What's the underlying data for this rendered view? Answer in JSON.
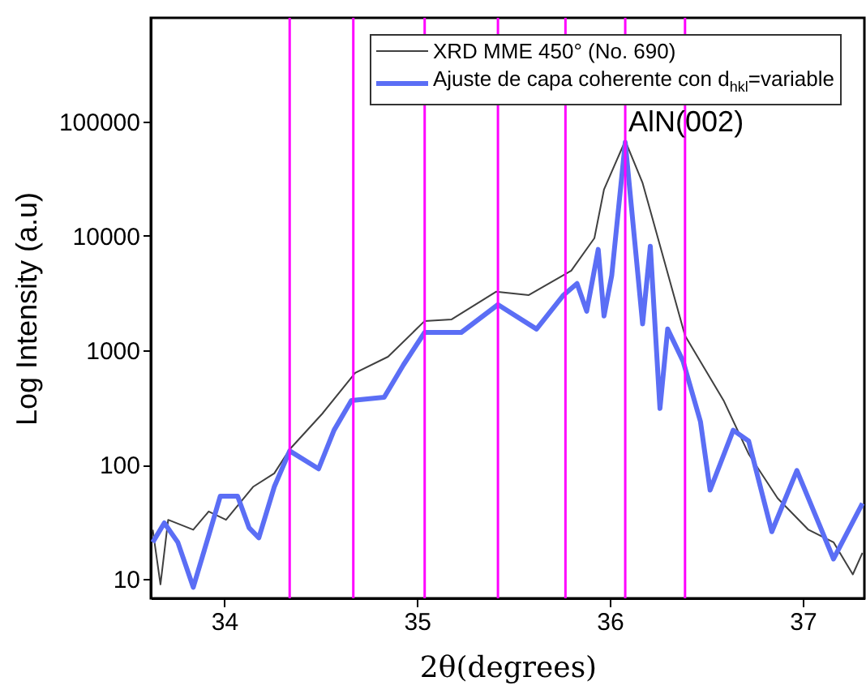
{
  "chart_data": {
    "type": "line",
    "xlabel": "2θ(degrees)",
    "ylabel": "Log Intensity (a.u)",
    "log": true,
    "grid": false,
    "legend": "top right",
    "line_style": "solid",
    "marker": "none",
    "xlim": [
      33.62,
      37.32
    ],
    "xticks": [
      34,
      35,
      36,
      37
    ],
    "ylim": [
      6.8,
      800000
    ],
    "yticks": [
      10,
      100,
      1000,
      10000,
      100000
    ],
    "annotations": [
      {
        "text": "AlN(002)",
        "x": 36.08,
        "y": 100000
      }
    ],
    "ref_lines": [
      {
        "axis": "x",
        "value": 34.34,
        "color": "#ff00ff"
      },
      {
        "axis": "x",
        "value": 34.67,
        "color": "#ff00ff"
      },
      {
        "axis": "x",
        "value": 35.04,
        "color": "#ff00ff"
      },
      {
        "axis": "x",
        "value": 35.42,
        "color": "#ff00ff"
      },
      {
        "axis": "x",
        "value": 35.77,
        "color": "#ff00ff"
      },
      {
        "axis": "x",
        "value": 36.08,
        "color": "#ff00ff"
      },
      {
        "axis": "x",
        "value": 36.39,
        "color": "#ff00ff"
      }
    ],
    "series": [
      {
        "name": "XRD MME 450° (No. 690)",
        "color": "#404040",
        "x": [
          33.63,
          33.67,
          33.71,
          33.84,
          33.92,
          34.01,
          34.15,
          34.26,
          34.34,
          34.51,
          34.68,
          34.85,
          35.04,
          35.18,
          35.41,
          35.58,
          35.8,
          35.92,
          35.97,
          36.08,
          36.17,
          36.28,
          36.39,
          36.59,
          36.72,
          36.87,
          37.03,
          37.16,
          37.26,
          37.31
        ],
        "values": [
          27,
          9,
          33,
          27,
          39,
          33,
          64,
          84,
          136,
          280,
          634,
          877,
          1800,
          1860,
          3240,
          3030,
          4950,
          9520,
          25400,
          67600,
          28900,
          6240,
          1340,
          364,
          124,
          51,
          27,
          21,
          11,
          17
        ]
      },
      {
        "name": "Ajuste de capa coherente con d$_{hkl}$=variable",
        "color": "#5b6ef5",
        "x": [
          33.63,
          33.69,
          33.76,
          33.84,
          33.92,
          33.98,
          34.07,
          34.13,
          34.18,
          34.26,
          34.34,
          34.49,
          34.57,
          34.66,
          34.83,
          34.93,
          35.04,
          35.23,
          35.42,
          35.62,
          35.76,
          35.83,
          35.88,
          35.94,
          35.97,
          36.01,
          36.08,
          36.13,
          36.17,
          36.21,
          36.26,
          36.3,
          36.38,
          36.47,
          36.52,
          36.64,
          36.72,
          36.84,
          36.97,
          37.16,
          37.31
        ],
        "values": [
          21,
          31,
          21,
          8.5,
          24,
          53,
          53,
          28,
          23,
          64,
          132,
          92,
          200,
          364,
          388,
          745,
          1430,
          1430,
          2500,
          1530,
          3030,
          3820,
          2190,
          7590,
          1990,
          4500,
          65500,
          8630,
          1700,
          8100,
          310,
          1530,
          800,
          238,
          60,
          200,
          161,
          26,
          89,
          15,
          46
        ]
      }
    ]
  }
}
